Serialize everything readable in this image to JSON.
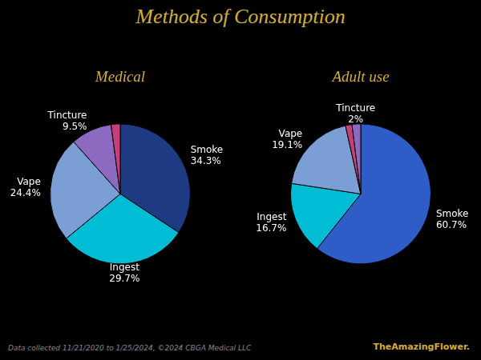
{
  "title": "Methods of Consumption",
  "annotations": [
    "Data collected 11/21/2020 to 1/25/2024, ©2024 CBGA Medical LLC",
    "TheAmazingFlower."
  ],
  "chart_data": [
    {
      "type": "pie",
      "title": "Medical",
      "categories": [
        "Smoke",
        "Ingest",
        "Vape",
        "Tincture",
        null
      ],
      "values": [
        34.3,
        29.7,
        24.4,
        9.5,
        2.1
      ],
      "value_labels": [
        "34.3%",
        "29.7%",
        "24.4%",
        "9.5%",
        null
      ],
      "colors": [
        "#1e3a82",
        "#00bcd4",
        "#7b9fd4",
        "#8b6abf",
        "#c4407a"
      ],
      "data_labels": true,
      "legend": false
    },
    {
      "type": "pie",
      "title": "Adult use",
      "categories": [
        "Smoke",
        "Ingest",
        "Vape",
        null,
        "Tincture"
      ],
      "values": [
        60.7,
        16.7,
        19.1,
        1.5,
        2.0
      ],
      "value_labels": [
        "60.7%",
        "16.7%",
        "19.1%",
        null,
        "2%"
      ],
      "colors": [
        "#2e5dc8",
        "#00bcd4",
        "#7b9fd4",
        "#c4407a",
        "#8b6abf"
      ],
      "data_labels": true,
      "legend": false
    }
  ]
}
